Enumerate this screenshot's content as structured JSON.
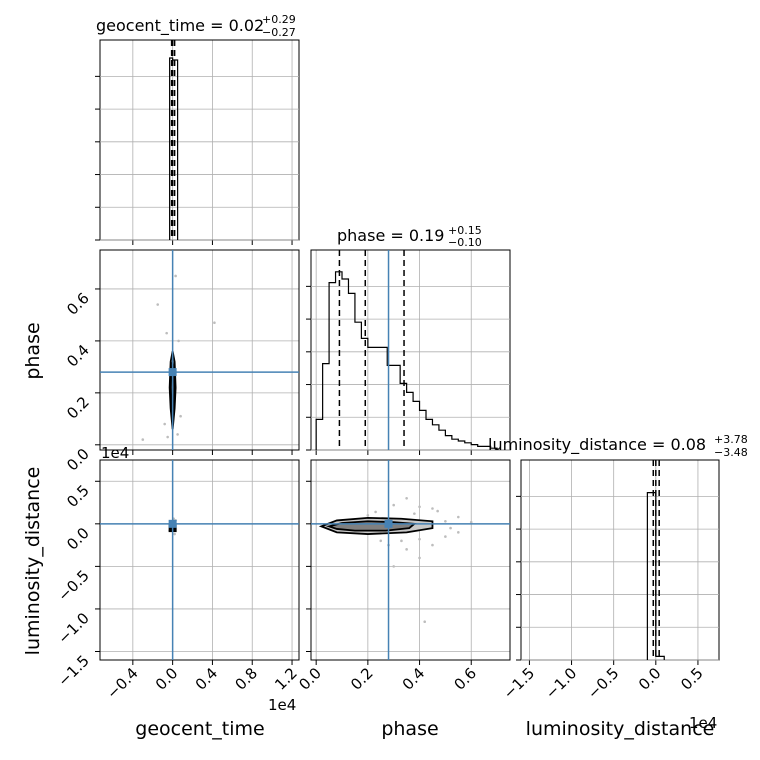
{
  "chart_data": {
    "type": "corner",
    "parameters": [
      "geocent_time",
      "phase",
      "luminosity_distance"
    ],
    "offset_label": "1e4",
    "truth_color": "#4682b4",
    "titles": {
      "geocent_time": {
        "name": "geocent_time",
        "median": "0.02",
        "plus": "+0.29",
        "minus": "−0.27"
      },
      "phase": {
        "name": "phase",
        "median": "0.19",
        "plus": "+0.15",
        "minus": "−0.10"
      },
      "luminosity_distance": {
        "name": "luminosity_distance",
        "median": "0.08",
        "plus": "+3.78",
        "minus": "−3.48"
      }
    },
    "axes": {
      "geocent_time": {
        "range": [
          -0.73,
          1.27
        ],
        "ticks": [
          -0.4,
          0.0,
          0.4,
          0.8,
          1.2
        ],
        "tick_labels": [
          "−0.4",
          "0.0",
          "0.4",
          "0.8",
          "1.2"
        ]
      },
      "phase": {
        "range": [
          -0.02,
          0.75
        ],
        "ticks": [
          0.0,
          0.2,
          0.4,
          0.6
        ],
        "tick_labels": [
          "0.0",
          "0.2",
          "0.4",
          "0.6"
        ]
      },
      "luminosity_distance": {
        "range": [
          -1.6,
          0.75
        ],
        "ticks": [
          -1.5,
          -1.0,
          -0.5,
          0.0,
          0.5
        ],
        "tick_labels": [
          "−1.5",
          "−1.0",
          "−0.5",
          "0.0",
          "0.5"
        ]
      }
    },
    "truths": {
      "geocent_time": 0.0,
      "phase": 0.28,
      "luminosity_distance": 0.0
    },
    "histograms": {
      "geocent_time": {
        "quantiles": [
          -0.01,
          0.0,
          0.02
        ],
        "bins": [
          [
            -0.03,
            0.0,
            0.0
          ],
          [
            0.0,
            0.05,
            0.0
          ],
          [
            -0.01,
            0.0,
            1.0
          ],
          [
            0.0,
            0.05,
            1.0
          ]
        ]
      },
      "phase": {
        "quantiles": [
          0.09,
          0.19,
          0.34
        ],
        "edges": [
          0.0,
          0.025,
          0.05,
          0.075,
          0.1,
          0.125,
          0.15,
          0.175,
          0.2,
          0.225,
          0.25,
          0.275,
          0.3,
          0.325,
          0.35,
          0.375,
          0.4,
          0.425,
          0.45,
          0.475,
          0.5,
          0.525,
          0.55,
          0.575,
          0.6,
          0.625,
          0.65,
          0.675,
          0.7
        ],
        "counts": [
          0.17,
          0.48,
          0.93,
          0.99,
          0.95,
          0.87,
          0.71,
          0.62,
          0.57,
          0.57,
          0.57,
          0.47,
          0.47,
          0.37,
          0.32,
          0.27,
          0.22,
          0.17,
          0.14,
          0.11,
          0.08,
          0.06,
          0.05,
          0.04,
          0.03,
          0.02,
          0.02,
          0.01
        ]
      },
      "luminosity_distance": {
        "quantiles": [
          -0.03,
          0.0,
          0.04
        ],
        "edges": [
          -0.1,
          0.0,
          0.1
        ],
        "counts": [
          0.93,
          0.02
        ]
      }
    },
    "contours_2d": {
      "phase_vs_geocent_time": {
        "center": [
          0.0,
          0.22
        ],
        "outer": [
          [
            0.0,
            0.06
          ],
          [
            0.02,
            0.14
          ],
          [
            0.03,
            0.22
          ],
          [
            0.02,
            0.32
          ],
          [
            0.0,
            0.36
          ],
          [
            -0.02,
            0.32
          ],
          [
            -0.03,
            0.22
          ],
          [
            -0.02,
            0.14
          ]
        ],
        "inner": [
          [
            0.0,
            0.09
          ],
          [
            0.012,
            0.16
          ],
          [
            0.018,
            0.22
          ],
          [
            0.012,
            0.29
          ],
          [
            0.0,
            0.32
          ],
          [
            -0.012,
            0.29
          ],
          [
            -0.018,
            0.22
          ],
          [
            -0.012,
            0.16
          ]
        ],
        "scatter": [
          [
            -0.15,
            0.54
          ],
          [
            0.42,
            0.47
          ],
          [
            -0.3,
            0.02
          ],
          [
            0.03,
            0.65
          ],
          [
            -0.05,
            0.03
          ],
          [
            0.05,
            0.04
          ],
          [
            0.08,
            0.11
          ],
          [
            -0.08,
            0.08
          ],
          [
            0.06,
            0.4
          ],
          [
            -0.06,
            0.43
          ]
        ]
      },
      "luminosity_distance_vs_geocent_time": {
        "center": [
          0.0,
          -0.05
        ],
        "scatter": [
          [
            0.02,
            -0.05
          ],
          [
            -0.02,
            0.02
          ],
          [
            0.03,
            0.04
          ],
          [
            -0.03,
            -0.08
          ],
          [
            0.01,
            0.06
          ],
          [
            0.02,
            -0.12
          ]
        ]
      },
      "luminosity_distance_vs_phase": {
        "center": [
          0.17,
          -0.04
        ],
        "outer": [
          [
            0.02,
            -0.03
          ],
          [
            0.08,
            0.04
          ],
          [
            0.2,
            0.07
          ],
          [
            0.33,
            0.06
          ],
          [
            0.45,
            0.03
          ],
          [
            0.45,
            -0.05
          ],
          [
            0.35,
            -0.1
          ],
          [
            0.2,
            -0.12
          ],
          [
            0.08,
            -0.1
          ]
        ],
        "inner": [
          [
            0.05,
            -0.03
          ],
          [
            0.1,
            0.01
          ],
          [
            0.2,
            0.03
          ],
          [
            0.3,
            0.02
          ],
          [
            0.38,
            0.0
          ],
          [
            0.36,
            -0.05
          ],
          [
            0.27,
            -0.08
          ],
          [
            0.15,
            -0.08
          ],
          [
            0.08,
            -0.06
          ]
        ],
        "scatter": [
          [
            0.3,
            0.22
          ],
          [
            0.4,
            0.2
          ],
          [
            0.47,
            0.15
          ],
          [
            0.55,
            0.08
          ],
          [
            0.6,
            0.02
          ],
          [
            0.28,
            -0.25
          ],
          [
            0.35,
            -0.3
          ],
          [
            0.4,
            -0.4
          ],
          [
            0.3,
            -0.5
          ],
          [
            0.42,
            -1.15
          ],
          [
            0.33,
            -0.2
          ],
          [
            0.45,
            -0.25
          ],
          [
            0.5,
            0.03
          ],
          [
            0.52,
            -0.05
          ],
          [
            0.23,
            0.14
          ],
          [
            0.38,
            0.12
          ],
          [
            0.25,
            -0.2
          ],
          [
            0.5,
            -0.15
          ],
          [
            0.2,
            0.1
          ],
          [
            0.45,
            0.18
          ],
          [
            0.15,
            0.05
          ],
          [
            0.35,
            0.3
          ],
          [
            0.4,
            -0.18
          ],
          [
            0.55,
            -0.1
          ]
        ]
      }
    }
  }
}
